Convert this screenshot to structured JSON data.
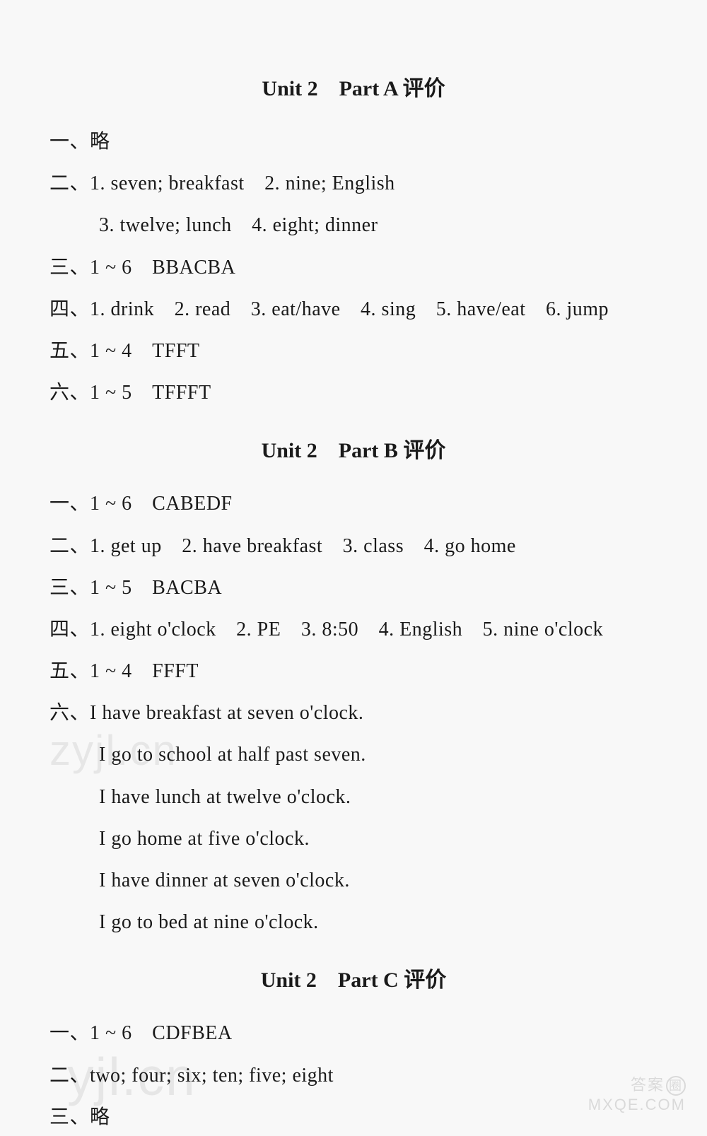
{
  "sections": {
    "partA": {
      "title": "Unit 2　Part A 评价",
      "lines": [
        "一、略",
        "二、1. seven; breakfast　2. nine; English",
        "3. twelve; lunch　4. eight; dinner",
        "三、1 ~ 6　BBACBA",
        "四、1. drink　2. read　3. eat/have　4. sing　5. have/eat　6. jump",
        "五、1 ~ 4　TFFT",
        "六、1 ~ 5　TFFFT"
      ]
    },
    "partB": {
      "title": "Unit 2　Part B 评价",
      "lines": [
        "一、1 ~ 6　CABEDF",
        "二、1. get up　2. have breakfast　3. class　4. go home",
        "三、1 ~ 5　BACBA",
        "四、1. eight o'clock　2. PE　3. 8:50　4. English　5. nine o'clock",
        "五、1 ~ 4　FFFT",
        "六、I have breakfast at seven o'clock.",
        "I go to school at half past seven.",
        "I have lunch at twelve o'clock.",
        "I go home at five o'clock.",
        "I have dinner at seven o'clock.",
        "I go to bed at nine o'clock."
      ]
    },
    "partC": {
      "title": "Unit 2　Part C 评价",
      "lines": [
        "一、1 ~ 6　CDFBEA",
        "二、two; four; six; ten; five; eight",
        "三、略"
      ]
    }
  },
  "watermarks": {
    "wm1": "zyjl.cn",
    "wm2": "yjl.cn",
    "wm3a": "答案",
    "wm3b": "MXQE.COM"
  },
  "styles": {
    "background_color": "#f8f8f8",
    "text_color": "#1a1a1a",
    "title_fontsize": 30,
    "body_fontsize": 28
  }
}
